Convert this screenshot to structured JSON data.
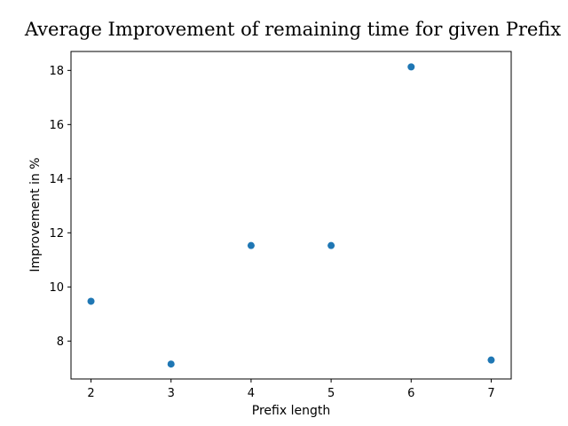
{
  "chart_data": {
    "type": "scatter",
    "title": "Average Improvement of remaining time for given Prefix",
    "xlabel": "Prefix length",
    "ylabel": "Improvement in %",
    "x": [
      2,
      3,
      4,
      5,
      6,
      7
    ],
    "y": [
      9.47,
      7.15,
      11.53,
      11.53,
      18.13,
      7.3
    ],
    "xticks": [
      2,
      3,
      4,
      5,
      6,
      7
    ],
    "yticks": [
      8,
      10,
      12,
      14,
      16,
      18
    ],
    "xlim": [
      1.75,
      7.25
    ],
    "ylim": [
      6.6,
      18.7
    ],
    "marker_color": "#1f77b4",
    "grid": false,
    "legend": "none"
  }
}
